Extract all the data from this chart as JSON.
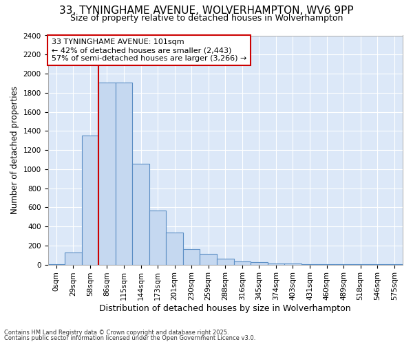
{
  "title": "33, TYNINGHAME AVENUE, WOLVERHAMPTON, WV6 9PP",
  "subtitle": "Size of property relative to detached houses in Wolverhampton",
  "xlabel": "Distribution of detached houses by size in Wolverhampton",
  "ylabel": "Number of detached properties",
  "bar_color": "#c5d8f0",
  "bar_edge_color": "#5b8ec4",
  "plot_bg_color": "#dce8f8",
  "fig_bg_color": "#ffffff",
  "grid_color": "#ffffff",
  "bin_labels": [
    "0sqm",
    "29sqm",
    "58sqm",
    "86sqm",
    "115sqm",
    "144sqm",
    "173sqm",
    "201sqm",
    "230sqm",
    "259sqm",
    "288sqm",
    "316sqm",
    "345sqm",
    "374sqm",
    "403sqm",
    "431sqm",
    "460sqm",
    "489sqm",
    "518sqm",
    "546sqm",
    "575sqm"
  ],
  "bar_values": [
    5,
    125,
    1355,
    1910,
    1910,
    1055,
    565,
    335,
    165,
    110,
    60,
    35,
    25,
    15,
    10,
    5,
    5,
    2,
    2,
    2,
    5
  ],
  "vline_x": 2.5,
  "annotation_title": "33 TYNINGHAME AVENUE: 101sqm",
  "annotation_line1": "← 42% of detached houses are smaller (2,443)",
  "annotation_line2": "57% of semi-detached houses are larger (3,266) →",
  "annotation_box_color": "#ffffff",
  "annotation_edge_color": "#cc0000",
  "vline_color": "#cc0000",
  "footer1": "Contains HM Land Registry data © Crown copyright and database right 2025.",
  "footer2": "Contains public sector information licensed under the Open Government Licence v3.0.",
  "ylim": [
    0,
    2400
  ],
  "yticks": [
    0,
    200,
    400,
    600,
    800,
    1000,
    1200,
    1400,
    1600,
    1800,
    2000,
    2200,
    2400
  ],
  "title_fontsize": 11,
  "subtitle_fontsize": 9,
  "tick_fontsize": 7.5,
  "ylabel_fontsize": 8.5,
  "xlabel_fontsize": 9
}
